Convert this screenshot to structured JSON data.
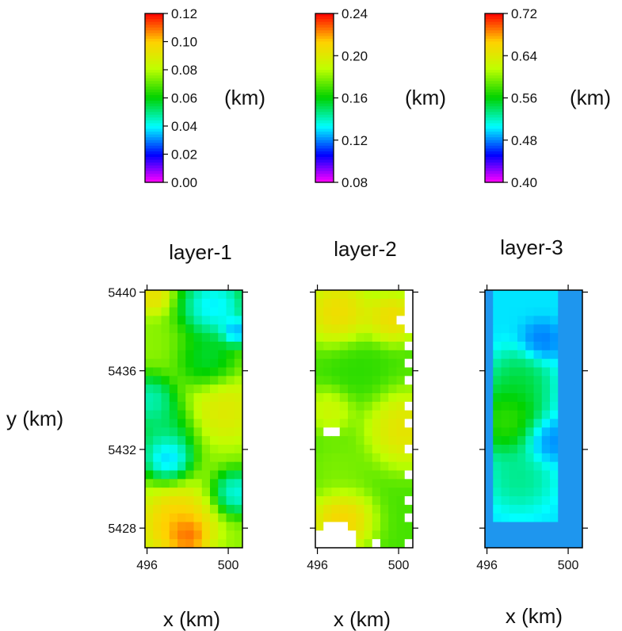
{
  "chart_data": {
    "type": "heatmap",
    "panels": [
      {
        "title": "layer-1",
        "colorbar": {
          "min": 0.0,
          "max": 0.12,
          "ticks": [
            "0.12",
            "0.10",
            "0.08",
            "0.06",
            "0.04",
            "0.02",
            "0.00"
          ],
          "unit": "(km)"
        },
        "x_ticks": [
          "496",
          "500"
        ],
        "y_ticks": [
          "5440",
          "5436",
          "5432",
          "5428"
        ],
        "xlim": [
          495.9,
          500.7
        ],
        "ylim": [
          5427.0,
          5440.1
        ],
        "grid": {
          "x0": 495.9,
          "x1": 500.7,
          "y0": 5427.0,
          "y1": 5440.1,
          "cols": 12,
          "rows": 30,
          "blobs": [
            {
              "x": 499.3,
              "y": 5439.3,
              "r": 1.3,
              "v": 0.025
            },
            {
              "x": 496.1,
              "y": 5434.5,
              "r": 1.0,
              "v": 0.035
            },
            {
              "x": 497.0,
              "y": 5431.6,
              "r": 0.9,
              "v": 0.02
            },
            {
              "x": 496.7,
              "y": 5432.8,
              "r": 1.3,
              "v": 0.045
            },
            {
              "x": 499.0,
              "y": 5436.5,
              "r": 1.1,
              "v": 0.05
            },
            {
              "x": 497.5,
              "y": 5428.2,
              "r": 1.4,
              "v": 0.11
            },
            {
              "x": 498.0,
              "y": 5427.6,
              "r": 0.7,
              "v": 0.12
            },
            {
              "x": 496.3,
              "y": 5439.8,
              "r": 0.7,
              "v": 0.1
            },
            {
              "x": 499.8,
              "y": 5434.0,
              "r": 1.3,
              "v": 0.095
            },
            {
              "x": 500.4,
              "y": 5429.8,
              "r": 0.9,
              "v": 0.03
            },
            {
              "x": 500.4,
              "y": 5438.0,
              "r": 0.6,
              "v": 0.02
            }
          ],
          "base": 0.075
        }
      },
      {
        "title": "layer-2",
        "colorbar": {
          "min": 0.08,
          "max": 0.24,
          "ticks": [
            "0.24",
            "0.20",
            "0.16",
            "0.12",
            "0.08"
          ],
          "unit": "(km)"
        },
        "x_ticks": [
          "496",
          "500"
        ],
        "y_ticks": [],
        "xlim": [
          495.9,
          500.7
        ],
        "ylim": [
          5427.0,
          5440.1
        ],
        "grid": {
          "x0": 495.9,
          "x1": 500.7,
          "y0": 5427.0,
          "y1": 5440.1,
          "cols": 12,
          "rows": 30,
          "blobs": [
            {
              "x": 497.0,
              "y": 5439.0,
              "r": 1.3,
              "v": 0.22
            },
            {
              "x": 499.7,
              "y": 5438.7,
              "r": 1.0,
              "v": 0.22
            },
            {
              "x": 497.2,
              "y": 5428.4,
              "r": 1.2,
              "v": 0.225
            },
            {
              "x": 500.3,
              "y": 5433.0,
              "r": 1.5,
              "v": 0.215
            },
            {
              "x": 498.0,
              "y": 5436.0,
              "r": 1.2,
              "v": 0.165
            },
            {
              "x": 497.0,
              "y": 5431.0,
              "r": 1.2,
              "v": 0.18
            },
            {
              "x": 496.6,
              "y": 5434.0,
              "r": 0.9,
              "v": 0.2
            }
          ],
          "base": 0.17,
          "blank_cells": [
            [
              0,
              11
            ],
            [
              1,
              11
            ],
            [
              2,
              11
            ],
            [
              3,
              10
            ],
            [
              3,
              11
            ],
            [
              4,
              11
            ],
            [
              6,
              11
            ],
            [
              8,
              11
            ],
            [
              10,
              11
            ],
            [
              13,
              11
            ],
            [
              15,
              11
            ],
            [
              18,
              11
            ],
            [
              21,
              11
            ],
            [
              24,
              11
            ],
            [
              26,
              11
            ],
            [
              16,
              1
            ],
            [
              16,
              2
            ],
            [
              27,
              1
            ],
            [
              27,
              2
            ],
            [
              27,
              3
            ],
            [
              28,
              0
            ],
            [
              28,
              1
            ],
            [
              28,
              2
            ],
            [
              28,
              3
            ],
            [
              28,
              4
            ],
            [
              29,
              0
            ],
            [
              29,
              1
            ],
            [
              29,
              2
            ],
            [
              29,
              3
            ],
            [
              29,
              4
            ],
            [
              29,
              7
            ],
            [
              29,
              11
            ]
          ]
        }
      },
      {
        "title": "layer-3",
        "colorbar": {
          "min": 0.4,
          "max": 0.72,
          "ticks": [
            "0.72",
            "0.64",
            "0.56",
            "0.48",
            "0.40"
          ],
          "unit": "(km)"
        },
        "x_ticks": [
          "496",
          "500"
        ],
        "y_ticks": [],
        "xlim": [
          495.9,
          500.7
        ],
        "ylim": [
          5427.0,
          5440.1
        ],
        "grid": {
          "x0": 495.9,
          "x1": 500.7,
          "y0": 5427.0,
          "y1": 5440.1,
          "cols": 12,
          "rows": 30,
          "blobs": [
            {
              "x": 497.0,
              "y": 5433.5,
              "r": 1.4,
              "v": 0.6
            },
            {
              "x": 497.6,
              "y": 5435.5,
              "r": 1.2,
              "v": 0.56
            },
            {
              "x": 497.6,
              "y": 5430.5,
              "r": 1.2,
              "v": 0.54
            },
            {
              "x": 498.7,
              "y": 5437.5,
              "r": 0.8,
              "v": 0.47
            },
            {
              "x": 499.0,
              "y": 5432.5,
              "r": 0.9,
              "v": 0.47
            }
          ],
          "base": 0.5,
          "fill_value": 0.51,
          "active_region": {
            "x0": 496.2,
            "x1": 499.6,
            "y0": 5428.5,
            "y1": 5440.1
          }
        }
      }
    ],
    "xlabel": "x (km)",
    "ylabel": "y (km)"
  },
  "colors": {
    "frame": "#000000",
    "blank_cell": "#ffffff",
    "layer3_background": "#1e96ee"
  }
}
